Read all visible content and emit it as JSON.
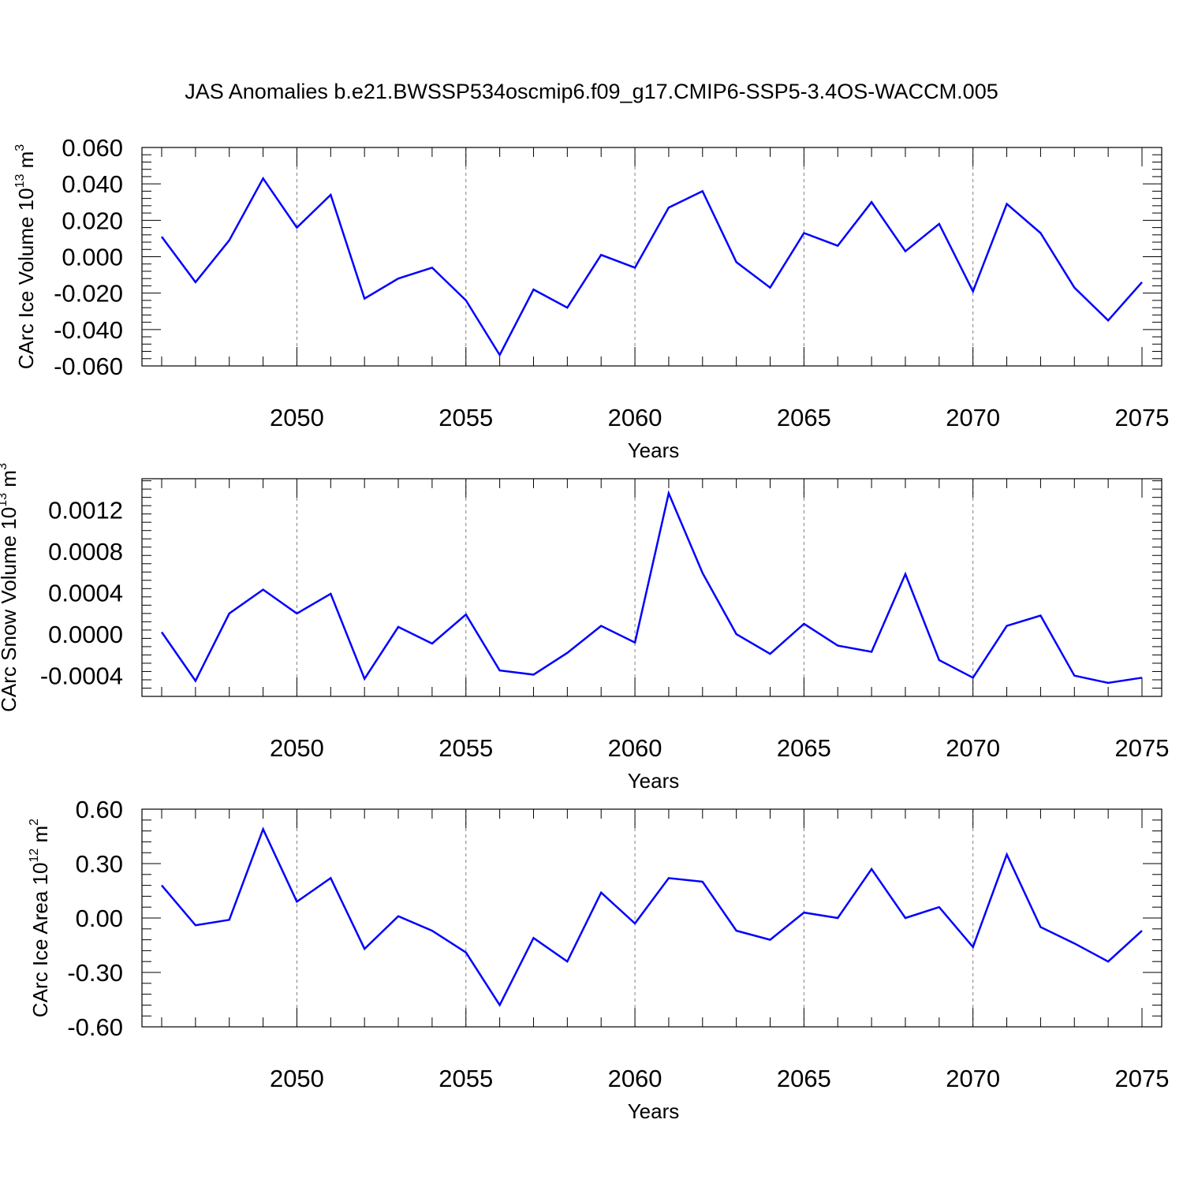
{
  "title": "JAS Anomalies b.e21.BWSSP534oscmip6.f09_g17.CMIP6-SSP5-3.4OS-WACCM.005",
  "colors": {
    "line": "#0000ff",
    "axis": "#000000",
    "grid": "#808080"
  },
  "chart_data": [
    {
      "type": "line",
      "ylabel": {
        "text": "CArc Ice Volume 10",
        "exp": "13",
        "unit": " m",
        "unit_exp": "3"
      },
      "xlabel": "Years",
      "xlim": [
        2046,
        2075
      ],
      "ylim": [
        -0.06,
        0.06
      ],
      "yticks": [
        -0.06,
        -0.04,
        -0.02,
        0.0,
        0.02,
        0.04,
        0.06
      ],
      "ytick_labels": [
        "-0.060",
        "-0.040",
        "-0.020",
        "0.000",
        "0.020",
        "0.040",
        "0.060"
      ],
      "xticks": [
        2050,
        2055,
        2060,
        2065,
        2070,
        2075
      ],
      "xtick_labels": [
        "2050",
        "2055",
        "2060",
        "2065",
        "2070",
        "2075"
      ],
      "grid": "vertical dashed at major x ticks",
      "series": [
        {
          "x": [
            2046,
            2047,
            2048,
            2049,
            2050,
            2051,
            2052,
            2053,
            2054,
            2055,
            2056,
            2057,
            2058,
            2059,
            2060,
            2061,
            2062,
            2063,
            2064,
            2065,
            2066,
            2067,
            2068,
            2069,
            2070,
            2071,
            2072,
            2073,
            2074,
            2075
          ],
          "values": [
            0.011,
            -0.014,
            0.009,
            0.043,
            0.016,
            0.034,
            -0.023,
            -0.012,
            -0.006,
            -0.024,
            -0.054,
            -0.018,
            -0.028,
            0.001,
            -0.006,
            0.027,
            0.036,
            -0.003,
            -0.017,
            0.013,
            0.006,
            0.03,
            0.003,
            0.018,
            -0.019,
            0.029,
            0.013,
            -0.017,
            -0.035,
            -0.014
          ]
        }
      ]
    },
    {
      "type": "line",
      "ylabel": {
        "text": "CArc Snow Volume 10",
        "exp": "13",
        "unit": " m",
        "unit_exp": "3"
      },
      "xlabel": "Years",
      "xlim": [
        2046,
        2075
      ],
      "ylim": [
        -0.0006,
        0.0015
      ],
      "yticks": [
        -0.0004,
        0.0,
        0.0004,
        0.0008,
        0.0012
      ],
      "ytick_labels": [
        "-0.0004",
        "0.0000",
        "0.0004",
        "0.0008",
        "0.0012"
      ],
      "xticks": [
        2050,
        2055,
        2060,
        2065,
        2070,
        2075
      ],
      "xtick_labels": [
        "2050",
        "2055",
        "2060",
        "2065",
        "2070",
        "2075"
      ],
      "grid": "vertical dashed at major x ticks",
      "series": [
        {
          "x": [
            2046,
            2047,
            2048,
            2049,
            2050,
            2051,
            2052,
            2053,
            2054,
            2055,
            2056,
            2057,
            2058,
            2059,
            2060,
            2061,
            2062,
            2063,
            2064,
            2065,
            2066,
            2067,
            2068,
            2069,
            2070,
            2071,
            2072,
            2073,
            2074,
            2075
          ],
          "values": [
            2e-05,
            -0.00045,
            0.0002,
            0.00043,
            0.0002,
            0.00039,
            -0.00043,
            7e-05,
            -9e-05,
            0.00019,
            -0.00035,
            -0.00039,
            -0.00018,
            8e-05,
            -8e-05,
            0.00136,
            0.00059,
            0.0,
            -0.00019,
            0.0001,
            -0.00011,
            -0.00017,
            0.00058,
            -0.00025,
            -0.00042,
            8e-05,
            0.00018,
            -0.0004,
            -0.00047,
            -0.00042
          ]
        }
      ]
    },
    {
      "type": "line",
      "ylabel": {
        "text": "CArc Ice Area 10",
        "exp": "12",
        "unit": " m",
        "unit_exp": "2"
      },
      "xlabel": "Years",
      "xlim": [
        2046,
        2075
      ],
      "ylim": [
        -0.6,
        0.6
      ],
      "yticks": [
        -0.6,
        -0.3,
        0.0,
        0.3,
        0.6
      ],
      "ytick_labels": [
        "-0.60",
        "-0.30",
        "0.00",
        "0.30",
        "0.60"
      ],
      "xticks": [
        2050,
        2055,
        2060,
        2065,
        2070,
        2075
      ],
      "xtick_labels": [
        "2050",
        "2055",
        "2060",
        "2065",
        "2070",
        "2075"
      ],
      "grid": "vertical dashed at major x ticks",
      "series": [
        {
          "x": [
            2046,
            2047,
            2048,
            2049,
            2050,
            2051,
            2052,
            2053,
            2054,
            2055,
            2056,
            2057,
            2058,
            2059,
            2060,
            2061,
            2062,
            2063,
            2064,
            2065,
            2066,
            2067,
            2068,
            2069,
            2070,
            2071,
            2072,
            2073,
            2074,
            2075
          ],
          "values": [
            0.18,
            -0.04,
            -0.01,
            0.49,
            0.09,
            0.22,
            -0.17,
            0.01,
            -0.07,
            -0.19,
            -0.48,
            -0.11,
            -0.24,
            0.14,
            -0.03,
            0.22,
            0.2,
            -0.07,
            -0.12,
            0.03,
            0.0,
            0.27,
            0.0,
            0.06,
            -0.16,
            0.35,
            -0.05,
            -0.14,
            -0.24,
            -0.07
          ]
        }
      ]
    }
  ]
}
